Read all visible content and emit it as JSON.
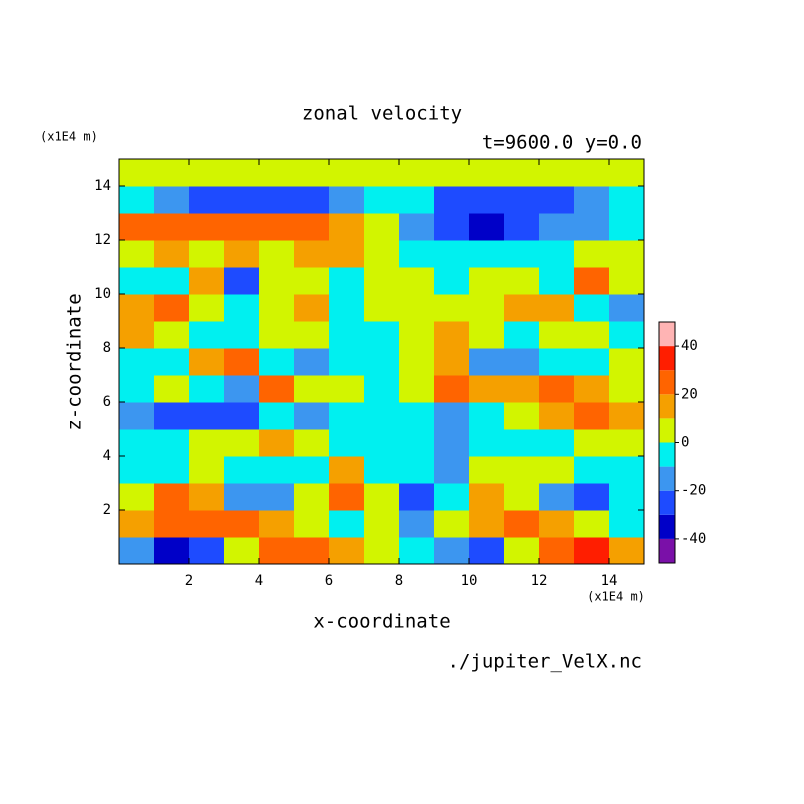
{
  "chart_data": {
    "type": "contour",
    "title": "zonal velocity",
    "subtitle": "t=9600.0 y=0.0",
    "x_label": "x-coordinate",
    "y_label": "z-coordinate",
    "x_unit": "(x1E4 m)",
    "y_unit": "(x1E4 m)",
    "source": "./jupiter_VelX.nc",
    "xlim": [
      0,
      15
    ],
    "ylim": [
      0,
      15
    ],
    "xticks": [
      2,
      4,
      6,
      8,
      10,
      12,
      14
    ],
    "yticks": [
      2,
      4,
      6,
      8,
      10,
      12,
      14
    ],
    "x": [
      0.5,
      1.5,
      2.5,
      3.5,
      4.5,
      5.5,
      6.5,
      7.5,
      8.5,
      9.5,
      10.5,
      11.5,
      12.5,
      13.5,
      14.5
    ],
    "y": [
      0.5,
      1.5,
      2.5,
      3.5,
      4.5,
      5.5,
      6.5,
      7.5,
      8.5,
      9.5,
      10.5,
      11.5,
      12.5,
      13.5,
      14.5
    ],
    "z": [
      [
        -20,
        -40,
        -30,
        0,
        20,
        25,
        10,
        0,
        -5,
        -15,
        -25,
        5,
        25,
        35,
        10
      ],
      [
        15,
        20,
        25,
        25,
        15,
        5,
        -10,
        0,
        -20,
        5,
        15,
        20,
        15,
        5,
        -5
      ],
      [
        5,
        20,
        10,
        -15,
        -20,
        5,
        20,
        0,
        -25,
        -10,
        15,
        0,
        -20,
        -25,
        -10
      ],
      [
        -10,
        -5,
        5,
        -10,
        -5,
        -10,
        15,
        -5,
        -5,
        -20,
        0,
        5,
        0,
        -10,
        -5
      ],
      [
        -5,
        -5,
        0,
        5,
        10,
        0,
        -10,
        -5,
        -5,
        -15,
        -10,
        -10,
        -5,
        5,
        0
      ],
      [
        -15,
        -25,
        -30,
        -25,
        -10,
        -15,
        -5,
        -5,
        -5,
        -20,
        -10,
        5,
        15,
        25,
        10
      ],
      [
        -5,
        5,
        -10,
        -20,
        25,
        5,
        0,
        -5,
        5,
        20,
        15,
        15,
        20,
        15,
        5
      ],
      [
        -5,
        -10,
        15,
        25,
        -5,
        -15,
        -5,
        -5,
        5,
        15,
        -20,
        -20,
        -10,
        -5,
        5
      ],
      [
        10,
        5,
        -5,
        -10,
        0,
        5,
        -5,
        -5,
        5,
        15,
        0,
        -10,
        5,
        5,
        -5
      ],
      [
        15,
        20,
        5,
        -5,
        5,
        10,
        -5,
        0,
        5,
        5,
        5,
        10,
        10,
        -10,
        -15
      ],
      [
        -5,
        -5,
        15,
        -25,
        0,
        5,
        -5,
        0,
        5,
        -5,
        5,
        5,
        -10,
        25,
        5
      ],
      [
        5,
        10,
        5,
        10,
        5,
        15,
        15,
        5,
        -10,
        -5,
        -5,
        -10,
        -5,
        0,
        5
      ],
      [
        20,
        25,
        25,
        20,
        25,
        20,
        10,
        5,
        -15,
        -25,
        -35,
        -30,
        -20,
        -15,
        -10
      ],
      [
        -5,
        -15,
        -25,
        -30,
        -30,
        -25,
        -15,
        -5,
        -10,
        -25,
        -30,
        -30,
        -25,
        -15,
        -5
      ],
      [
        5,
        5,
        0,
        5,
        5,
        5,
        0,
        5,
        0,
        5,
        5,
        0,
        5,
        5,
        5
      ]
    ],
    "levels": [
      -50,
      -40,
      -30,
      -20,
      -10,
      0,
      10,
      20,
      30,
      40,
      50
    ],
    "colors": [
      "#7a10a8",
      "#0000c8",
      "#1e4bff",
      "#3c96f0",
      "#00f0f0",
      "#d2f500",
      "#f5a000",
      "#ff6400",
      "#ff1e00",
      "#ffb4b4"
    ],
    "colorbar_ticks": [
      -40,
      -20,
      0,
      20,
      40
    ]
  }
}
